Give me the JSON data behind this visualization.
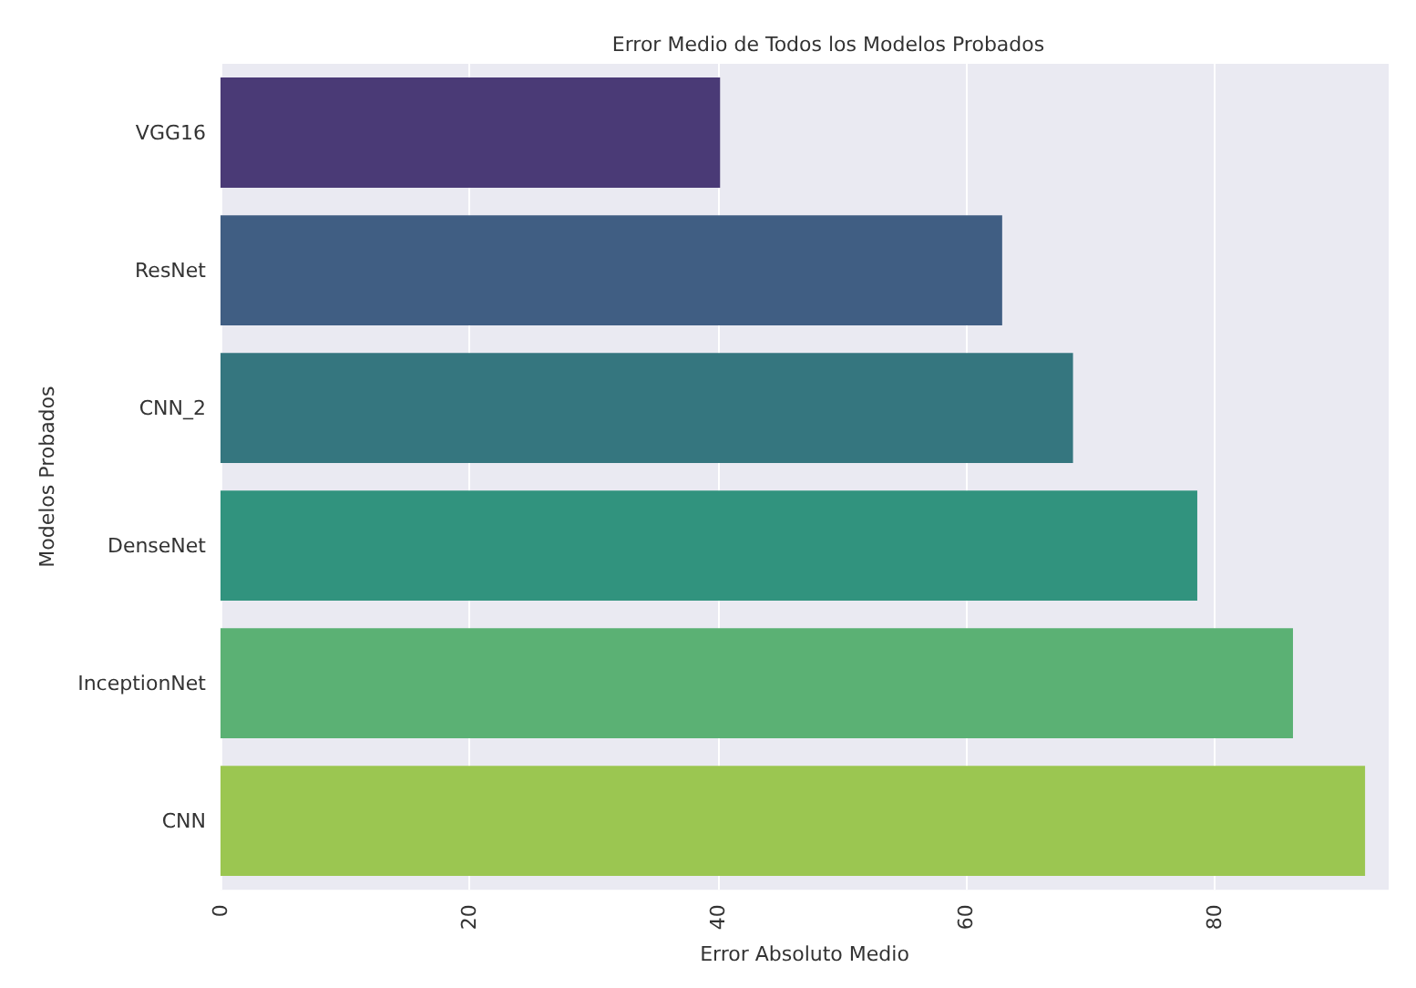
{
  "chart_data": {
    "type": "bar",
    "orientation": "horizontal",
    "title": "Error Medio de Todos los Modelos Probados",
    "xlabel": "Error Absoluto Medio",
    "ylabel": "Modelos Probados",
    "categories": [
      "VGG16",
      "ResNet",
      "CNN_2",
      "DenseNet",
      "InceptionNet",
      "CNN"
    ],
    "values": [
      40.2,
      62.9,
      68.6,
      78.6,
      86.3,
      92.1
    ],
    "colors": [
      "#4a3a76",
      "#405e83",
      "#35767f",
      "#31937e",
      "#5bb174",
      "#9bc651"
    ],
    "xlim": [
      0,
      94
    ],
    "xticks": [
      0,
      20,
      40,
      60,
      80
    ],
    "grid": "x"
  }
}
